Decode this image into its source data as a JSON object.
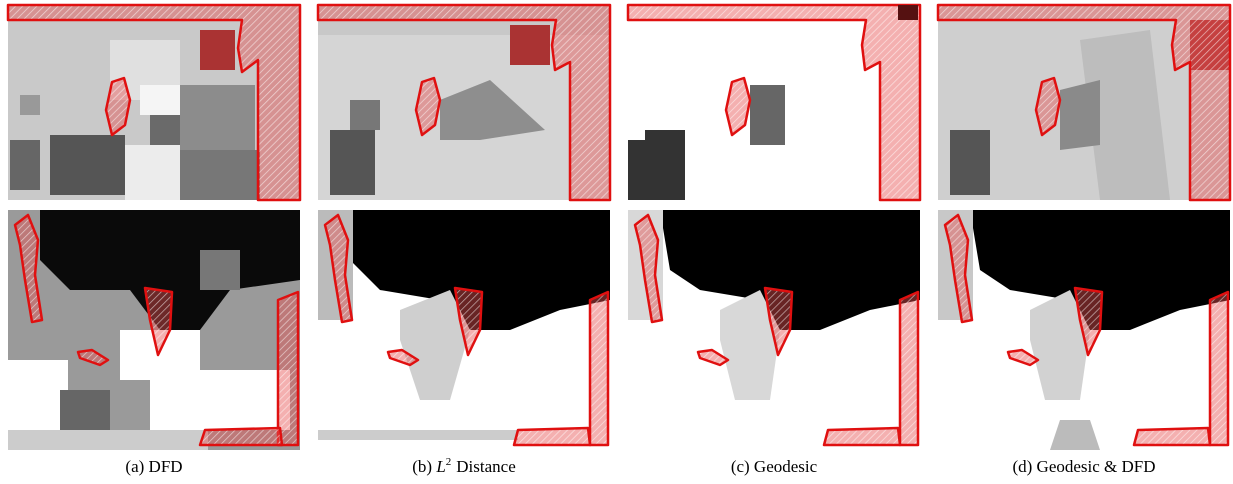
{
  "captions": [
    {
      "text": "(a) DFD"
    },
    {
      "prefix": "(b)",
      "var": "L",
      "sup": "2",
      "rest": "Distance"
    },
    {
      "text": "(c) Geodesic"
    },
    {
      "text": "(d) Geodesic & DFD"
    }
  ]
}
